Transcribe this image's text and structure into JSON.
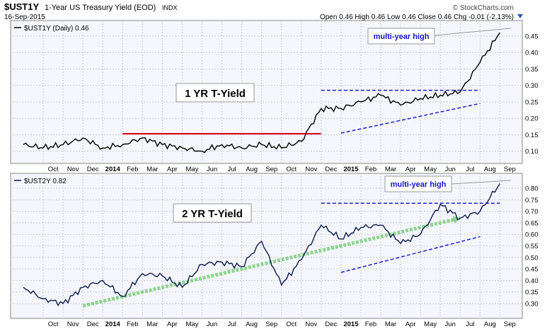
{
  "header": {
    "symbol": "$UST1Y",
    "name": "1-Year US Treasury Yield (EOD)",
    "exchange": "INDX",
    "date": "16-Sep-2015",
    "quote": "Open 0.46  High 0.46  Low 0.46  Close 0.46  Chg -0.01 (-2.13%)",
    "watermark": "© StockCharts.com"
  },
  "colors": {
    "panel_bg": "#f4f6fb",
    "grid": "#c9cdd6",
    "price": "#000000",
    "price2": "#0b1b4f",
    "resistance_red": "#dd0000",
    "trend_blue": "#1f1fd0",
    "trend_green": "#7dcf7d",
    "callout_text": "#1414c8"
  },
  "chart_data": [
    {
      "type": "line",
      "title": "$UST1Y (Daily) 0.46",
      "annotation": "1 YR T-Yield",
      "callout": "multi-year high",
      "ylim": [
        0.08,
        0.48
      ],
      "y_ticks": [
        0.1,
        0.15,
        0.2,
        0.25,
        0.3,
        0.35,
        0.4,
        0.45
      ],
      "y_tick_labels": [
        "0.10",
        "0.15",
        "0.20",
        "0.25",
        "0.30",
        "0.35",
        "0.40",
        "0.45"
      ],
      "x_tick_labels": [
        "Oct",
        "Nov",
        "Dec",
        "2014",
        "Feb",
        "Mar",
        "Apr",
        "May",
        "Jun",
        "Jul",
        "Aug",
        "Sep",
        "Oct",
        "Nov",
        "Dec",
        "2015",
        "Feb",
        "Mar",
        "Apr",
        "May",
        "Jun",
        "Jul",
        "Aug",
        "Sep"
      ],
      "x": [
        "2013-09",
        "2013-10",
        "2013-11",
        "2013-12",
        "2014-01",
        "2014-02",
        "2014-03",
        "2014-04",
        "2014-05",
        "2014-06",
        "2014-07",
        "2014-08",
        "2014-09",
        "2014-10",
        "2014-11",
        "2014-12",
        "2015-01",
        "2015-02",
        "2015-03",
        "2015-04",
        "2015-05",
        "2015-06",
        "2015-07",
        "2015-08",
        "2015-09"
      ],
      "series": [
        {
          "values": [
            0.12,
            0.11,
            0.12,
            0.14,
            0.11,
            0.12,
            0.14,
            0.12,
            0.11,
            0.1,
            0.12,
            0.11,
            0.12,
            0.11,
            0.13,
            0.23,
            0.23,
            0.25,
            0.27,
            0.24,
            0.26,
            0.27,
            0.28,
            0.37,
            0.46
          ]
        }
      ],
      "levels": [
        {
          "value": 0.153,
          "from": "2014-02",
          "to": "2014-12",
          "color": "resistance_red"
        },
        {
          "value": 0.285,
          "from": "2014-12",
          "to": "2015-08",
          "color": "trend_blue"
        }
      ],
      "trendlines": [
        {
          "from": [
            "2015-01",
            0.155
          ],
          "to": [
            "2015-08",
            0.245
          ],
          "color": "trend_blue"
        }
      ]
    },
    {
      "type": "line",
      "title": "$UST2Y 0.82",
      "annotation": "2 YR T-Yield",
      "callout": "multi-year high",
      "ylim": [
        0.26,
        0.84
      ],
      "y_ticks": [
        0.3,
        0.35,
        0.4,
        0.45,
        0.5,
        0.55,
        0.6,
        0.65,
        0.7,
        0.75,
        0.8
      ],
      "y_tick_labels": [
        "0.30",
        "0.35",
        "0.40",
        "0.45",
        "0.50",
        "0.55",
        "0.60",
        "0.65",
        "0.70",
        "0.75",
        "0.80"
      ],
      "x_tick_labels": [
        "Oct",
        "Nov",
        "Dec",
        "2014",
        "Feb",
        "Mar",
        "Apr",
        "May",
        "Jun",
        "Jul",
        "Aug",
        "Sep",
        "Oct",
        "Nov",
        "Dec",
        "2015",
        "Feb",
        "Mar",
        "Apr",
        "May",
        "Jun",
        "Jul",
        "Aug",
        "Sep"
      ],
      "x": [
        "2013-09",
        "2013-10",
        "2013-11",
        "2013-12",
        "2014-01",
        "2014-02",
        "2014-03",
        "2014-04",
        "2014-05",
        "2014-06",
        "2014-07",
        "2014-08",
        "2014-09",
        "2014-10",
        "2014-11",
        "2014-12",
        "2015-01",
        "2015-02",
        "2015-03",
        "2015-04",
        "2015-05",
        "2015-06",
        "2015-07",
        "2015-08",
        "2015-09"
      ],
      "series": [
        {
          "values": [
            0.37,
            0.32,
            0.3,
            0.37,
            0.4,
            0.33,
            0.43,
            0.42,
            0.37,
            0.47,
            0.48,
            0.46,
            0.57,
            0.38,
            0.49,
            0.64,
            0.58,
            0.63,
            0.64,
            0.56,
            0.6,
            0.73,
            0.67,
            0.7,
            0.82
          ]
        }
      ],
      "levels": [
        {
          "value": 0.735,
          "from": "2014-12",
          "to": "2015-09",
          "color": "trend_blue"
        }
      ],
      "trendlines": [
        {
          "from": [
            "2015-01",
            0.435
          ],
          "to": [
            "2015-08",
            0.59
          ],
          "color": "trend_blue"
        },
        {
          "from": [
            "2013-12",
            0.29
          ],
          "to": [
            "2015-07",
            0.67
          ],
          "color": "trend_green"
        }
      ]
    }
  ]
}
